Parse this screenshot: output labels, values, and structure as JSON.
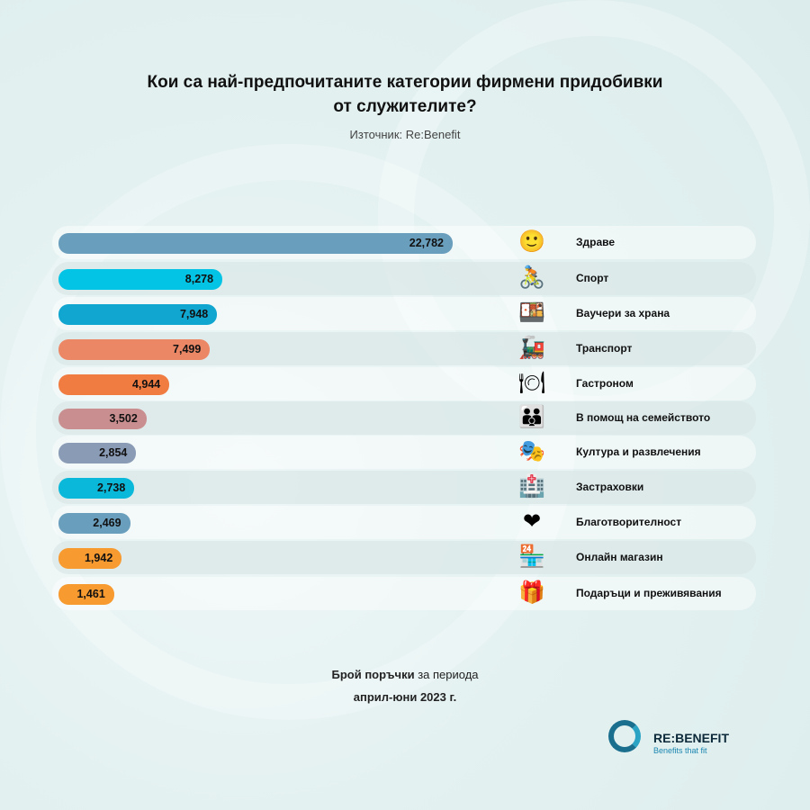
{
  "title_line1": "Кои са най-предпочитаните категории фирмени придобивки",
  "title_line2": "от служителите?",
  "source": "Източник: Re:Benefit",
  "footer": {
    "bold": "Брой поръчки",
    "rest": " за периода",
    "period": "април-юни 2023 г."
  },
  "logo": {
    "name": "RE:BENEFIT",
    "tagline": "Benefits that fit"
  },
  "chart_data": {
    "type": "bar",
    "orientation": "horizontal",
    "title": "Кои са най-предпочитаните категории фирмени придобивки от служителите?",
    "categories": [
      "Здраве",
      "Спорт",
      "Ваучери за храна",
      "Транспорт",
      "Гастроном",
      "В помощ на семейството",
      "Култура и развлечения",
      "Застраховки",
      "Благотворителност",
      "Онлайн магазин",
      "Подаръци и преживявания"
    ],
    "values": [
      22782,
      8278,
      7948,
      7499,
      4944,
      3502,
      2854,
      2738,
      2469,
      1942,
      1461
    ],
    "value_labels": [
      "22,782",
      "8,278",
      "7,948",
      "7,499",
      "4,944",
      "3,502",
      "2,854",
      "2,738",
      "2,469",
      "1,942",
      "1,461"
    ],
    "colors": [
      "#6a9ebd",
      "#03c4e4",
      "#10a6d0",
      "#ec8766",
      "#f07c42",
      "#c98f90",
      "#8a9bb5",
      "#0ab8da",
      "#6a9ebd",
      "#f79a30",
      "#f79a30"
    ],
    "icons": [
      "smiling-face-icon",
      "bicyclist-icon",
      "bento-box-icon",
      "train-icon",
      "plate-cutlery-icon",
      "family-icon",
      "theater-masks-icon",
      "hospital-icon",
      "heart-icon",
      "shop-icon",
      "gift-icon"
    ],
    "glyphs": [
      "🙂",
      "🚴",
      "🍱",
      "🚂",
      "🍽",
      "👪",
      "🎭",
      "🏥",
      "❤",
      "🏪",
      "🎁"
    ],
    "xlabel": "Брой поръчки за периода април-юни 2023 г.",
    "ylabel": ""
  }
}
